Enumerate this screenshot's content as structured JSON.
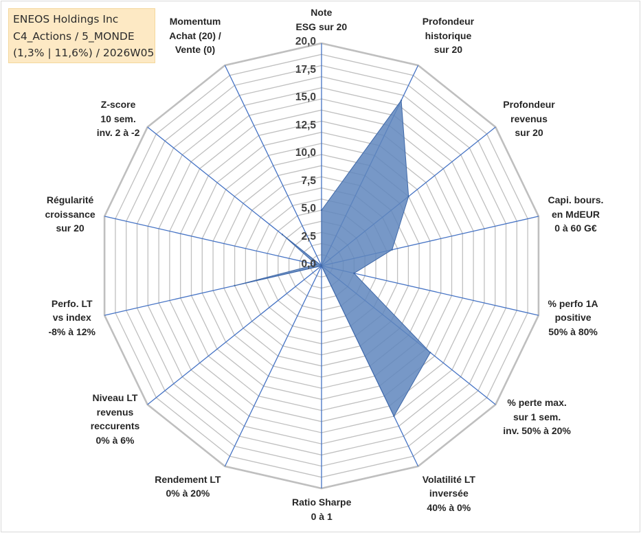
{
  "chart_data": {
    "type": "radar",
    "title_lines": [
      "ENEOS Holdings Inc",
      "C4_Actions / 5_MONDE",
      "(1,3% | 11,6%) / 2026W05"
    ],
    "rlim": [
      0,
      20
    ],
    "ticks": [
      0,
      2.5,
      5,
      7.5,
      10,
      12.5,
      15,
      17.5,
      20
    ],
    "tick_labels": [
      "0,0",
      "2,5",
      "5,0",
      "7,5",
      "10,0",
      "12,5",
      "15,0",
      "17,5",
      "20,0"
    ],
    "axes": [
      {
        "lines": [
          "Note",
          "ESG sur 20"
        ],
        "value": 5.0
      },
      {
        "lines": [
          "Profondeur",
          "historique",
          "sur 20"
        ],
        "value": 16.5
      },
      {
        "lines": [
          "Profondeur",
          "revenus",
          "sur 20"
        ],
        "value": 10.0
      },
      {
        "lines": [
          "Capi. bours.",
          "en MdEUR",
          "0 à 60 G€"
        ],
        "value": 6.5
      },
      {
        "lines": [
          "% perfo 1A",
          "positive",
          "50% à 80%"
        ],
        "value": 3.0
      },
      {
        "lines": [
          "% perte max.",
          "sur 1 sem.",
          "inv. 50% à 20%"
        ],
        "value": 12.5
      },
      {
        "lines": [
          "Volatilité LT",
          "inversée",
          "40% à 0%"
        ],
        "value": 15.0
      },
      {
        "lines": [
          "Ratio Sharpe",
          "0 à 1"
        ],
        "value": 0.0
      },
      {
        "lines": [
          "Rendement LT",
          "0% à 20%"
        ],
        "value": 0.0
      },
      {
        "lines": [
          "Niveau LT",
          "revenus",
          "reccurents",
          "0% à 6%"
        ],
        "value": 0.0
      },
      {
        "lines": [
          "Perfo. LT",
          "vs index",
          "-8% à 12%"
        ],
        "value": 8.0
      },
      {
        "lines": [
          "Régularité",
          "croissance",
          "sur 20"
        ],
        "value": 0.5
      },
      {
        "lines": [
          "Z-score",
          "10 sem.",
          "inv. 2 à -2"
        ],
        "value": 4.5
      },
      {
        "lines": [
          "Momentum",
          "Achat (20) /",
          "Vente (0)"
        ],
        "value": 0.0
      }
    ],
    "colors": {
      "area": "#5f86bd",
      "area_edge": "#3f68a8",
      "spoke": "#4472c4",
      "grid": "#bfbfbf"
    }
  }
}
